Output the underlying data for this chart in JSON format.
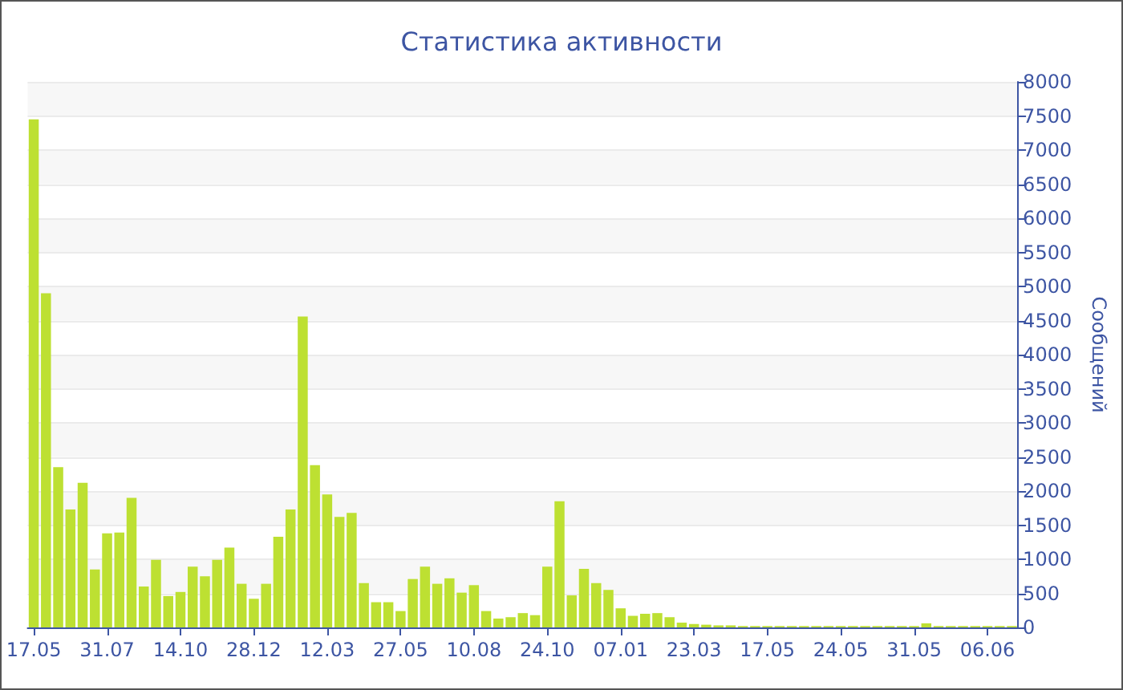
{
  "chart_data": {
    "type": "bar",
    "title": "Статистика активности",
    "ylabel": "Сообщений",
    "categories": [
      "17.05",
      null,
      null,
      null,
      null,
      null,
      "31.07",
      null,
      null,
      null,
      null,
      null,
      "14.10",
      null,
      null,
      null,
      null,
      null,
      "28.12",
      null,
      null,
      null,
      null,
      null,
      "12.03",
      null,
      null,
      null,
      null,
      null,
      "27.05",
      null,
      null,
      null,
      null,
      null,
      "10.08",
      null,
      null,
      null,
      null,
      null,
      "24.10",
      null,
      null,
      null,
      null,
      null,
      "07.01",
      null,
      null,
      null,
      null,
      null,
      "23.03",
      null,
      null,
      null,
      null,
      null,
      "17.05",
      null,
      null,
      null,
      null,
      null,
      "24.05",
      null,
      null,
      null,
      null,
      null,
      "31.05",
      null,
      null,
      null,
      null,
      null,
      "06.06",
      null,
      null
    ],
    "values": [
      7450,
      4900,
      2350,
      1730,
      2120,
      850,
      1380,
      1390,
      1900,
      600,
      990,
      460,
      520,
      890,
      750,
      990,
      1170,
      640,
      420,
      640,
      1330,
      1730,
      4560,
      2380,
      1950,
      1620,
      1680,
      650,
      370,
      370,
      240,
      710,
      890,
      640,
      720,
      510,
      620,
      240,
      130,
      150,
      210,
      180,
      890,
      1850,
      470,
      860,
      650,
      550,
      280,
      170,
      200,
      210,
      150,
      70,
      50,
      40,
      30,
      30,
      20,
      20,
      20,
      20,
      20,
      20,
      20,
      20,
      20,
      20,
      20,
      20,
      20,
      20,
      20,
      60,
      20,
      20,
      20,
      20,
      20,
      20,
      20
    ],
    "color": "#bde032",
    "ylim": [
      0,
      8000
    ],
    "yticks": [
      0,
      500,
      1000,
      1500,
      2000,
      2500,
      3000,
      3500,
      4000,
      4500,
      5000,
      5500,
      6000,
      6500,
      7000,
      7500,
      8000
    ],
    "grid": "y"
  }
}
